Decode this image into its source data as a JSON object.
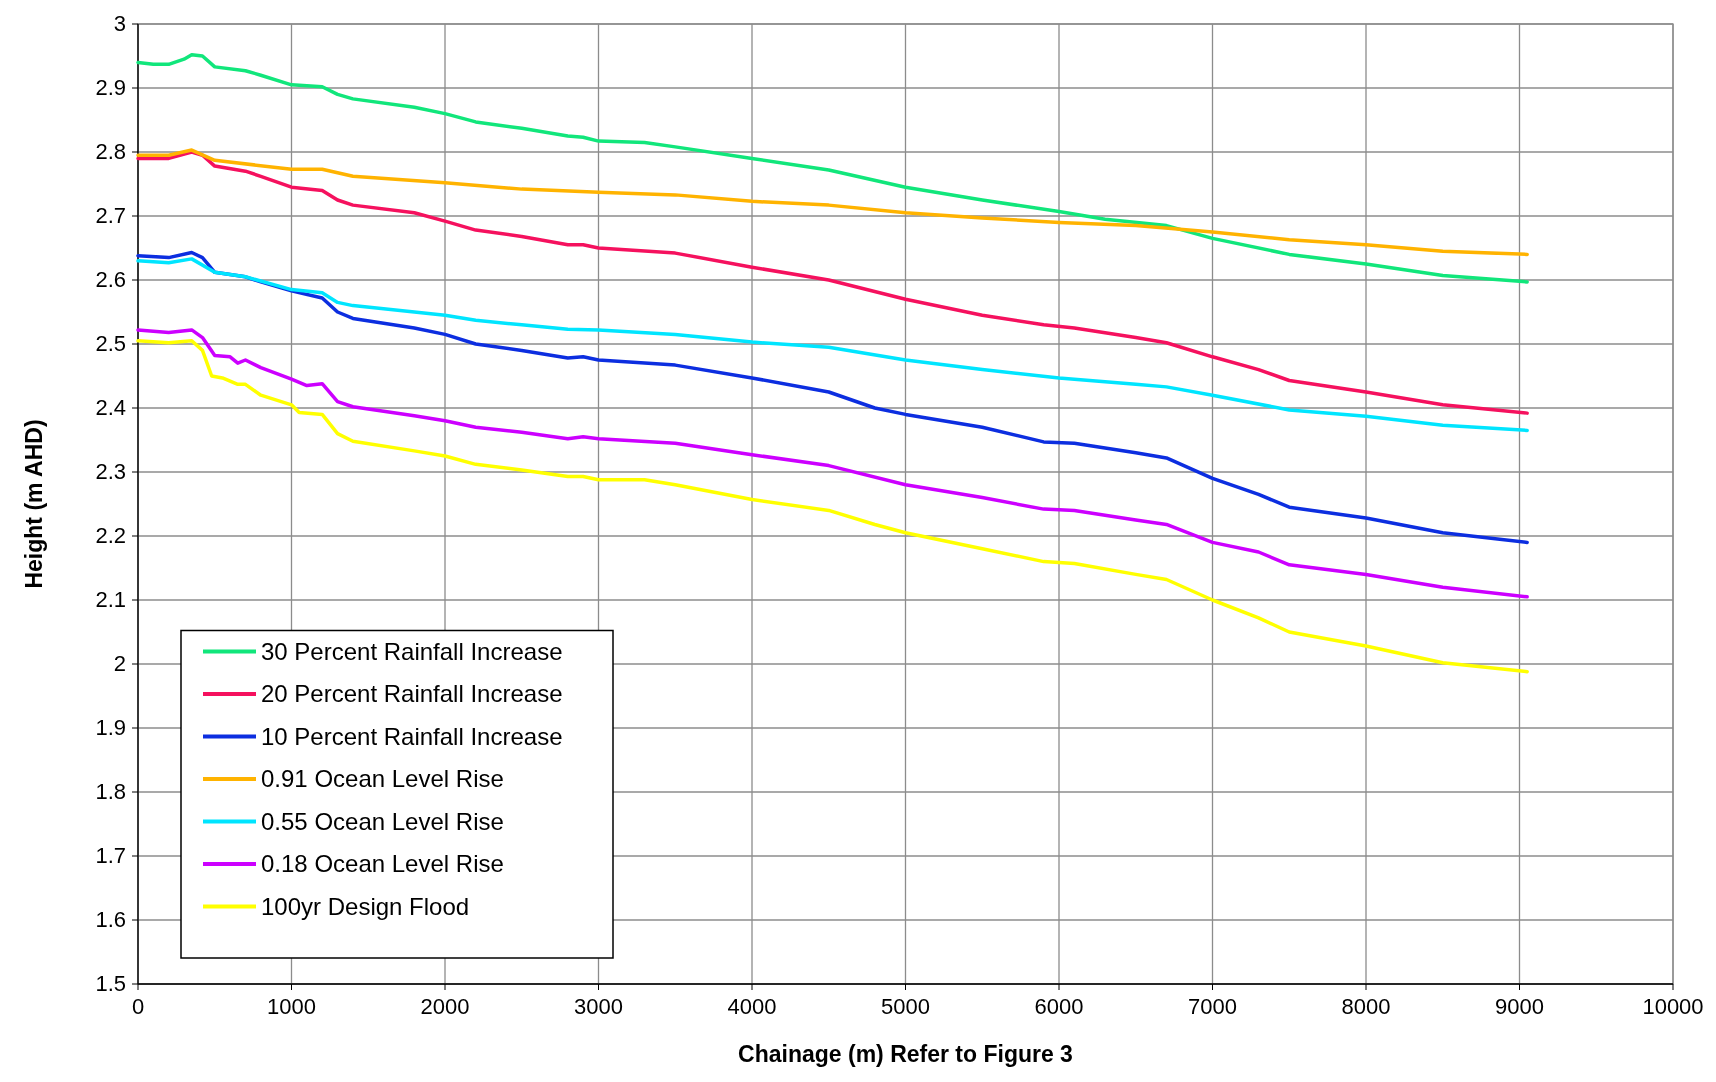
{
  "chart_data": {
    "type": "line",
    "xlabel": "Chainage (m) Refer to Figure 3",
    "ylabel": "Height (m AHD)",
    "xlim": [
      0,
      10000
    ],
    "xticks": [
      0,
      1000,
      2000,
      3000,
      4000,
      5000,
      6000,
      7000,
      8000,
      9000,
      10000
    ],
    "ylim": [
      1.5,
      3
    ],
    "yticks": [
      1.5,
      1.6,
      1.7,
      1.8,
      1.9,
      2,
      2.1,
      2.2,
      2.3,
      2.4,
      2.5,
      2.6,
      2.7,
      2.8,
      2.9,
      3
    ],
    "grid": true,
    "legend": "bottom left",
    "marker": "none",
    "line_style": "solid",
    "series": [
      {
        "name": "30 Percent Rainfall Increase",
        "color": "#11e67b",
        "x": [
          0,
          100,
          200,
          300,
          350,
          420,
          500,
          700,
          800,
          1000,
          1200,
          1300,
          1400,
          1800,
          2000,
          2200,
          2500,
          2800,
          2900,
          3000,
          3300,
          3500,
          4000,
          4500,
          5000,
          5500,
          6000,
          6300,
          6700,
          7000,
          7500,
          8000,
          8500,
          9050
        ],
        "values": [
          2.94,
          2.937,
          2.937,
          2.945,
          2.952,
          2.95,
          2.933,
          2.927,
          2.92,
          2.905,
          2.902,
          2.89,
          2.883,
          2.87,
          2.86,
          2.847,
          2.837,
          2.825,
          2.823,
          2.817,
          2.815,
          2.808,
          2.79,
          2.772,
          2.745,
          2.725,
          2.707,
          2.695,
          2.685,
          2.665,
          2.64,
          2.625,
          2.607,
          2.597
        ]
      },
      {
        "name": "20 Percent Rainfall Increase",
        "color": "#f5115e",
        "x": [
          0,
          200,
          350,
          420,
          500,
          700,
          800,
          1000,
          1200,
          1300,
          1400,
          1800,
          2000,
          2200,
          2500,
          2800,
          2900,
          3000,
          3500,
          4000,
          4500,
          5000,
          5500,
          5900,
          6100,
          6500,
          6700,
          7000,
          7300,
          7500,
          8000,
          8500,
          9050
        ],
        "values": [
          2.79,
          2.79,
          2.8,
          2.795,
          2.778,
          2.77,
          2.762,
          2.745,
          2.74,
          2.725,
          2.717,
          2.705,
          2.692,
          2.678,
          2.668,
          2.655,
          2.655,
          2.65,
          2.642,
          2.62,
          2.6,
          2.57,
          2.545,
          2.53,
          2.525,
          2.51,
          2.502,
          2.48,
          2.46,
          2.443,
          2.425,
          2.405,
          2.392
        ]
      },
      {
        "name": "10 Percent Rainfall Increase",
        "color": "#0c2ee0",
        "x": [
          0,
          200,
          350,
          420,
          500,
          700,
          800,
          1000,
          1200,
          1300,
          1400,
          1800,
          2000,
          2200,
          2500,
          2800,
          2900,
          3000,
          3500,
          4000,
          4500,
          4800,
          5000,
          5500,
          5900,
          6100,
          6500,
          6700,
          7000,
          7300,
          7500,
          8000,
          8500,
          9050
        ],
        "values": [
          2.638,
          2.635,
          2.643,
          2.635,
          2.612,
          2.605,
          2.597,
          2.583,
          2.572,
          2.55,
          2.54,
          2.525,
          2.515,
          2.5,
          2.49,
          2.478,
          2.48,
          2.475,
          2.467,
          2.447,
          2.425,
          2.4,
          2.39,
          2.37,
          2.347,
          2.345,
          2.33,
          2.322,
          2.29,
          2.265,
          2.245,
          2.228,
          2.205,
          2.19
        ]
      },
      {
        "name": "0.91 Ocean Level Rise",
        "color": "#ffb300",
        "x": [
          0,
          200,
          350,
          500,
          1000,
          1200,
          1400,
          2000,
          2500,
          3000,
          3500,
          4000,
          4500,
          5000,
          5500,
          6000,
          6500,
          7000,
          7500,
          8000,
          8500,
          9050
        ],
        "values": [
          2.795,
          2.795,
          2.803,
          2.787,
          2.773,
          2.773,
          2.762,
          2.752,
          2.742,
          2.737,
          2.733,
          2.723,
          2.717,
          2.705,
          2.697,
          2.69,
          2.685,
          2.675,
          2.663,
          2.655,
          2.645,
          2.64
        ]
      },
      {
        "name": "0.55 Ocean Level Rise",
        "color": "#00e5ff",
        "x": [
          0,
          200,
          350,
          500,
          700,
          1000,
          1200,
          1300,
          1400,
          1800,
          2000,
          2200,
          2500,
          2800,
          3000,
          3500,
          4000,
          4500,
          5000,
          5500,
          6000,
          6500,
          6700,
          7000,
          7500,
          8000,
          8500,
          9050
        ],
        "values": [
          2.63,
          2.627,
          2.633,
          2.612,
          2.605,
          2.585,
          2.58,
          2.565,
          2.56,
          2.55,
          2.545,
          2.537,
          2.53,
          2.523,
          2.522,
          2.515,
          2.503,
          2.495,
          2.475,
          2.46,
          2.447,
          2.437,
          2.433,
          2.42,
          2.397,
          2.387,
          2.373,
          2.365
        ]
      },
      {
        "name": "0.18 Ocean Level Rise",
        "color": "#cc00ff",
        "x": [
          0,
          200,
          350,
          420,
          500,
          600,
          650,
          700,
          800,
          1000,
          1100,
          1200,
          1300,
          1400,
          1800,
          2000,
          2200,
          2500,
          2800,
          2900,
          3000,
          3500,
          4000,
          4500,
          5000,
          5500,
          5900,
          6100,
          6500,
          6700,
          7000,
          7300,
          7500,
          8000,
          8500,
          9050
        ],
        "values": [
          2.522,
          2.518,
          2.522,
          2.51,
          2.482,
          2.48,
          2.47,
          2.475,
          2.463,
          2.445,
          2.435,
          2.438,
          2.41,
          2.402,
          2.388,
          2.38,
          2.37,
          2.362,
          2.352,
          2.355,
          2.352,
          2.345,
          2.327,
          2.31,
          2.28,
          2.26,
          2.242,
          2.24,
          2.225,
          2.218,
          2.19,
          2.175,
          2.155,
          2.14,
          2.12,
          2.105
        ]
      },
      {
        "name": "100yr Design Flood",
        "color": "#ffff00",
        "x": [
          0,
          200,
          350,
          420,
          480,
          550,
          650,
          700,
          800,
          1000,
          1050,
          1200,
          1300,
          1400,
          1800,
          2000,
          2200,
          2500,
          2800,
          2900,
          3000,
          3300,
          3500,
          4000,
          4500,
          4800,
          5000,
          5500,
          5900,
          6100,
          6500,
          6700,
          7000,
          7300,
          7500,
          8000,
          8500,
          9050
        ],
        "values": [
          2.505,
          2.502,
          2.505,
          2.49,
          2.45,
          2.447,
          2.437,
          2.437,
          2.42,
          2.405,
          2.393,
          2.39,
          2.36,
          2.348,
          2.333,
          2.325,
          2.312,
          2.303,
          2.293,
          2.293,
          2.288,
          2.288,
          2.28,
          2.257,
          2.24,
          2.218,
          2.205,
          2.18,
          2.16,
          2.157,
          2.14,
          2.132,
          2.1,
          2.072,
          2.05,
          2.028,
          2.002,
          1.988
        ]
      }
    ]
  }
}
